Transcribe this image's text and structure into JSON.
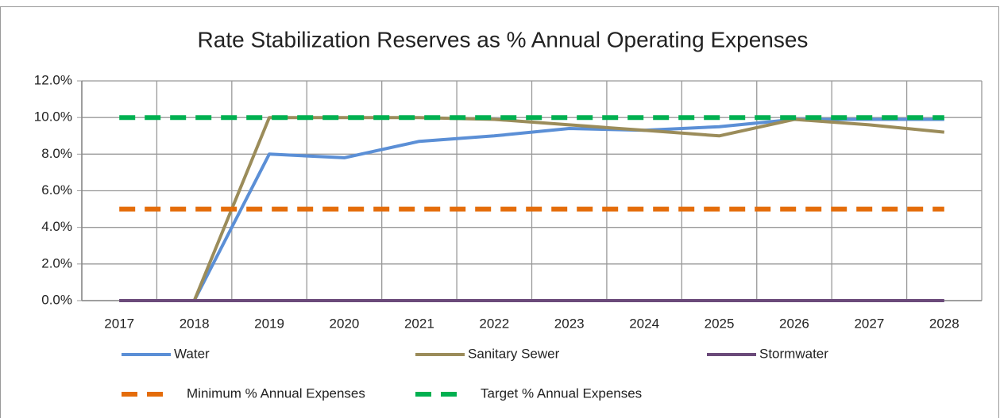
{
  "chart_data": {
    "type": "line",
    "title": "Rate Stabilization Reserves as % Annual Operating Expenses",
    "categories": [
      "2017",
      "2018",
      "2019",
      "2020",
      "2021",
      "2022",
      "2023",
      "2024",
      "2025",
      "2026",
      "2027",
      "2028"
    ],
    "ylim": [
      0,
      12
    ],
    "yticks": [
      {
        "value": 0,
        "label": "0.0%"
      },
      {
        "value": 2,
        "label": "2.0%"
      },
      {
        "value": 4,
        "label": "4.0%"
      },
      {
        "value": 6,
        "label": "6.0%"
      },
      {
        "value": 8,
        "label": "8.0%"
      },
      {
        "value": 10,
        "label": "10.0%"
      },
      {
        "value": 12,
        "label": "12.0%"
      }
    ],
    "grid": true,
    "legend": "bottom",
    "series": [
      {
        "name": "Water",
        "color": "#5b8fd6",
        "style": "solid",
        "values": [
          0,
          0,
          8.0,
          7.8,
          8.7,
          9.0,
          9.4,
          9.3,
          9.5,
          9.9,
          9.9,
          9.9
        ]
      },
      {
        "name": "Sanitary Sewer",
        "color": "#9b8c5a",
        "style": "solid",
        "values": [
          0,
          0,
          10.0,
          10.0,
          10.0,
          9.9,
          9.6,
          9.3,
          9.0,
          9.9,
          9.6,
          9.2
        ]
      },
      {
        "name": "Stormwater",
        "color": "#6b4a7a",
        "style": "solid",
        "values": [
          0,
          0,
          0,
          0,
          0,
          0,
          0,
          0,
          0,
          0,
          0,
          0
        ]
      },
      {
        "name": "Minimum % Annual Expenses",
        "color": "#e46c0a",
        "style": "dashed",
        "values": [
          5,
          5,
          5,
          5,
          5,
          5,
          5,
          5,
          5,
          5,
          5,
          5
        ]
      },
      {
        "name": "Target % Annual Expenses",
        "color": "#00b050",
        "style": "dashed",
        "values": [
          10,
          10,
          10,
          10,
          10,
          10,
          10,
          10,
          10,
          10,
          10,
          10
        ]
      }
    ]
  }
}
